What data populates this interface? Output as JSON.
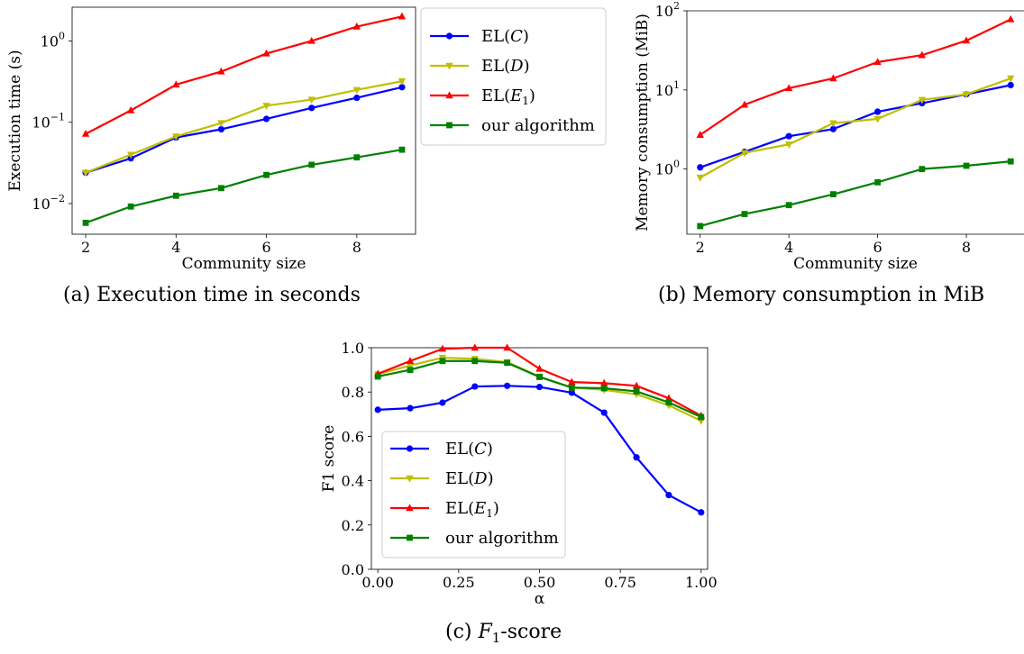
{
  "chart_data": [
    {
      "id": "a",
      "type": "line",
      "caption": "(a) Execution time in seconds",
      "xlabel": "Community size",
      "ylabel": "Execution time (s)",
      "yscale": "log",
      "xlim": [
        1.7,
        9.3
      ],
      "ylim": [
        0.0042,
        2.6
      ],
      "xticks": [
        2,
        4,
        6,
        8
      ],
      "xtick_labels": [
        "2",
        "4",
        "6",
        "8"
      ],
      "yticks": [
        0.01,
        0.1,
        1
      ],
      "ytick_labels": [
        {
          "base": "10",
          "exp": "−2"
        },
        {
          "base": "10",
          "exp": "−1"
        },
        {
          "base": "10",
          "exp": "0"
        }
      ],
      "legend": "outside-right",
      "grid": false,
      "x": [
        2,
        3,
        4,
        5,
        6,
        7,
        8,
        9
      ],
      "series": [
        {
          "name": "EL(C)",
          "name_parts": [
            "EL(",
            "C",
            ")"
          ],
          "color": "#0000ff",
          "marker": "circle",
          "values": [
            0.024,
            0.036,
            0.065,
            0.082,
            0.11,
            0.15,
            0.2,
            0.27
          ]
        },
        {
          "name": "EL(D)",
          "name_parts": [
            "EL(",
            "D",
            ")"
          ],
          "color": "#bfbf00",
          "marker": "triangle-down",
          "values": [
            0.024,
            0.04,
            0.067,
            0.098,
            0.16,
            0.19,
            0.25,
            0.32
          ]
        },
        {
          "name": "EL(E1)",
          "name_parts": [
            "EL(",
            "E",
            "1",
            ")"
          ],
          "color": "#ff0000",
          "marker": "triangle-up",
          "values": [
            0.072,
            0.14,
            0.29,
            0.42,
            0.7,
            1.0,
            1.5,
            2.0
          ]
        },
        {
          "name": "our algorithm",
          "name_parts": [
            "our algorithm"
          ],
          "color": "#008000",
          "marker": "square",
          "values": [
            0.0058,
            0.0092,
            0.0125,
            0.0155,
            0.0225,
            0.03,
            0.037,
            0.046
          ]
        }
      ]
    },
    {
      "id": "b",
      "type": "line",
      "caption": "(b) Memory consumption in MiB",
      "xlabel": "Community size",
      "ylabel": "Memory consumption (MiB)",
      "yscale": "log",
      "xlim": [
        1.7,
        9.3
      ],
      "ylim": [
        0.15,
        100
      ],
      "xticks": [
        2,
        4,
        6,
        8
      ],
      "xtick_labels": [
        "2",
        "4",
        "6",
        "8"
      ],
      "yticks": [
        1,
        10,
        100
      ],
      "ytick_labels": [
        {
          "base": "10",
          "exp": "0"
        },
        {
          "base": "10",
          "exp": "1"
        },
        {
          "base": "10",
          "exp": "2"
        }
      ],
      "grid": false,
      "x": [
        2,
        3,
        4,
        5,
        6,
        7,
        8,
        9
      ],
      "series": [
        {
          "name": "EL(C)",
          "color": "#0000ff",
          "marker": "circle",
          "values": [
            1.05,
            1.65,
            2.6,
            3.2,
            5.3,
            6.8,
            8.8,
            11.5
          ]
        },
        {
          "name": "EL(D)",
          "color": "#bfbf00",
          "marker": "triangle-down",
          "values": [
            0.78,
            1.6,
            2.05,
            3.8,
            4.3,
            7.5,
            8.8,
            14.0
          ]
        },
        {
          "name": "EL(E1)",
          "color": "#ff0000",
          "marker": "triangle-up",
          "values": [
            2.7,
            6.5,
            10.5,
            14.0,
            22.5,
            27.5,
            42.0,
            78.0
          ]
        },
        {
          "name": "our algorithm",
          "color": "#008000",
          "marker": "square",
          "values": [
            0.19,
            0.27,
            0.35,
            0.48,
            0.68,
            1.0,
            1.1,
            1.25
          ]
        }
      ]
    },
    {
      "id": "c",
      "type": "line",
      "caption": "(c) F1-score",
      "caption_parts": [
        "(c) ",
        "F",
        "1",
        "-score"
      ],
      "xlabel": "α",
      "ylabel": "F1 score",
      "yscale": "linear",
      "xlim": [
        -0.02,
        1.02
      ],
      "ylim": [
        0,
        1
      ],
      "xticks": [
        0,
        0.25,
        0.5,
        0.75,
        1
      ],
      "xtick_labels": [
        "0.00",
        "0.25",
        "0.50",
        "0.75",
        "1.00"
      ],
      "yticks": [
        0,
        0.2,
        0.4,
        0.6,
        0.8,
        1
      ],
      "ytick_labels": [
        "0.0",
        "0.2",
        "0.4",
        "0.6",
        "0.8",
        "1.0"
      ],
      "legend": "lower-left",
      "grid": false,
      "x": [
        0,
        0.1,
        0.2,
        0.3,
        0.4,
        0.5,
        0.6,
        0.7,
        0.8,
        0.9,
        1.0
      ],
      "series": [
        {
          "name": "EL(C)",
          "color": "#0000ff",
          "marker": "circle",
          "values": [
            0.72,
            0.727,
            0.752,
            0.825,
            0.828,
            0.823,
            0.797,
            0.707,
            0.505,
            0.335,
            0.257
          ]
        },
        {
          "name": "EL(D)",
          "color": "#bfbf00",
          "marker": "triangle-down",
          "values": [
            0.88,
            0.92,
            0.955,
            0.95,
            0.935,
            0.87,
            0.82,
            0.81,
            0.79,
            0.74,
            0.67
          ]
        },
        {
          "name": "EL(E1)",
          "color": "#ff0000",
          "marker": "triangle-up",
          "values": [
            0.882,
            0.94,
            0.995,
            1.0,
            1.0,
            0.905,
            0.845,
            0.84,
            0.828,
            0.772,
            0.693
          ]
        },
        {
          "name": "our algorithm",
          "color": "#008000",
          "marker": "square",
          "values": [
            0.87,
            0.9,
            0.94,
            0.94,
            0.932,
            0.868,
            0.82,
            0.817,
            0.803,
            0.753,
            0.687
          ]
        }
      ]
    }
  ]
}
